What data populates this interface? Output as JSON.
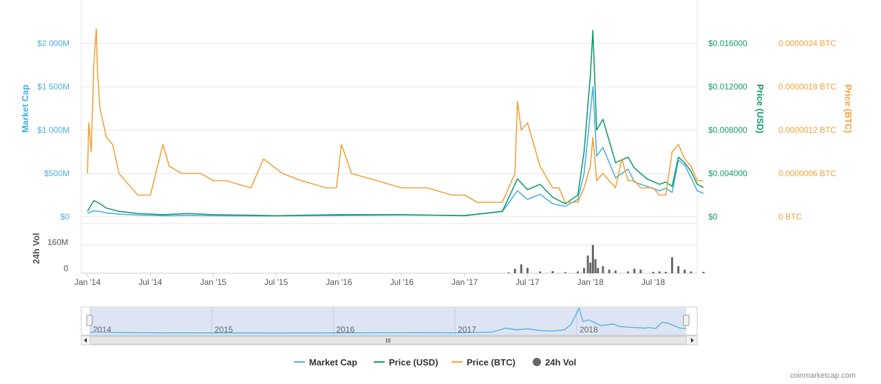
{
  "chart_data": {
    "type": "line",
    "x_ticks": [
      "Jan '14",
      "Jul '14",
      "Jan '15",
      "Jul '15",
      "Jan '16",
      "Jul '16",
      "Jan '17",
      "Jul '17",
      "Jan '18",
      "Jul '18"
    ],
    "axes": {
      "market_cap": {
        "label": "Market Cap",
        "ticks": [
          "$0",
          "$500M",
          "$1 000M",
          "$1 500M",
          "$2 000M"
        ],
        "range": [
          0,
          2000
        ],
        "color": "#4aaee0"
      },
      "price_usd": {
        "label": "Price (USD)",
        "ticks": [
          "$0",
          "$0.004000",
          "$0.008000",
          "$0.012000",
          "$0.016000"
        ],
        "range": [
          0,
          0.016
        ],
        "color": "#119a6f"
      },
      "price_btc": {
        "label": "Price (BTC)",
        "ticks": [
          "0 BTC",
          "0.0000006 BTC",
          "0.0000012 BTC",
          "0.0000018 BTC",
          "0.0000024 BTC"
        ],
        "range": [
          0,
          2.4e-06
        ],
        "color": "#f0a23a"
      },
      "volume": {
        "label": "24h Vol",
        "ticks": [
          "0",
          "160M"
        ],
        "range": [
          0,
          160
        ],
        "color": "#666666"
      }
    },
    "series": [
      {
        "name": "Market Cap",
        "unit": "$M",
        "color": "#4aaee0",
        "x": [
          2014.0,
          2014.05,
          2014.1,
          2014.15,
          2014.25,
          2014.4,
          2014.6,
          2014.8,
          2015.0,
          2015.5,
          2016.0,
          2016.5,
          2017.0,
          2017.3,
          2017.42,
          2017.5,
          2017.6,
          2017.7,
          2017.8,
          2017.9,
          2017.95,
          2018.0,
          2018.02,
          2018.05,
          2018.1,
          2018.2,
          2018.3,
          2018.35,
          2018.45,
          2018.55,
          2018.6,
          2018.65,
          2018.7,
          2018.75,
          2018.8,
          2018.85,
          2018.9
        ],
        "values": [
          40,
          70,
          60,
          45,
          30,
          20,
          12,
          15,
          12,
          10,
          14,
          20,
          15,
          60,
          300,
          200,
          260,
          150,
          120,
          200,
          500,
          1200,
          1500,
          700,
          800,
          450,
          550,
          400,
          350,
          300,
          330,
          280,
          650,
          600,
          450,
          300,
          270
        ]
      },
      {
        "name": "Price (USD)",
        "unit": "USD",
        "color": "#119a6f",
        "x": [
          2014.0,
          2014.05,
          2014.1,
          2014.15,
          2014.25,
          2014.4,
          2014.6,
          2014.8,
          2015.0,
          2015.5,
          2016.0,
          2016.5,
          2017.0,
          2017.3,
          2017.42,
          2017.5,
          2017.6,
          2017.7,
          2017.8,
          2017.9,
          2017.95,
          2018.0,
          2018.02,
          2018.05,
          2018.1,
          2018.2,
          2018.3,
          2018.35,
          2018.45,
          2018.55,
          2018.6,
          2018.65,
          2018.7,
          2018.75,
          2018.8,
          2018.85,
          2018.9
        ],
        "values": [
          0.0005,
          0.0015,
          0.0012,
          0.0008,
          0.0005,
          0.0003,
          0.0002,
          0.0003,
          0.0002,
          0.0001,
          0.0002,
          0.0002,
          0.0001,
          0.0005,
          0.0035,
          0.0025,
          0.003,
          0.0018,
          0.0012,
          0.002,
          0.006,
          0.013,
          0.0172,
          0.008,
          0.009,
          0.005,
          0.0055,
          0.0045,
          0.0035,
          0.003,
          0.0032,
          0.0028,
          0.0055,
          0.005,
          0.0042,
          0.003,
          0.0027
        ]
      },
      {
        "name": "Price (BTC)",
        "unit": "BTC",
        "color": "#f0a23a",
        "x": [
          2014.0,
          2014.01,
          2014.03,
          2014.05,
          2014.07,
          2014.08,
          2014.1,
          2014.15,
          2014.2,
          2014.25,
          2014.3,
          2014.4,
          2014.5,
          2014.6,
          2014.65,
          2014.75,
          2014.9,
          2015.0,
          2015.1,
          2015.3,
          2015.4,
          2015.55,
          2015.7,
          2015.9,
          2015.98,
          2016.02,
          2016.1,
          2016.3,
          2016.5,
          2016.7,
          2016.9,
          2017.0,
          2017.1,
          2017.2,
          2017.3,
          2017.35,
          2017.4,
          2017.42,
          2017.45,
          2017.5,
          2017.6,
          2017.7,
          2017.75,
          2017.8,
          2017.9,
          2017.95,
          2018.0,
          2018.02,
          2018.05,
          2018.1,
          2018.15,
          2018.2,
          2018.25,
          2018.3,
          2018.35,
          2018.4,
          2018.5,
          2018.55,
          2018.6,
          2018.65,
          2018.7,
          2018.75,
          2018.8,
          2018.85,
          2018.9
        ],
        "values": [
          6e-07,
          1.3e-06,
          9e-07,
          2.1e-06,
          2.6e-06,
          2e-06,
          1.5e-06,
          1.1e-06,
          1e-06,
          6e-07,
          5e-07,
          3e-07,
          3e-07,
          1e-06,
          7e-07,
          6e-07,
          6e-07,
          5e-07,
          5e-07,
          4e-07,
          8e-07,
          6e-07,
          5e-07,
          4e-07,
          4e-07,
          1e-06,
          6e-07,
          5e-07,
          4e-07,
          4e-07,
          3e-07,
          3e-07,
          2e-07,
          2e-07,
          2e-07,
          4e-07,
          6e-07,
          1.6e-06,
          1.2e-06,
          1.3e-06,
          7e-07,
          4e-07,
          4e-07,
          2e-07,
          2e-07,
          4e-07,
          7e-07,
          1.1e-06,
          5e-07,
          6e-07,
          5e-07,
          4e-07,
          8e-07,
          5e-07,
          5e-07,
          4e-07,
          4e-07,
          3e-07,
          3e-07,
          9e-07,
          1e-06,
          8e-07,
          7e-07,
          5e-07,
          5e-07
        ]
      },
      {
        "name": "24h Vol",
        "unit": "$M",
        "color": "#666666",
        "x": [
          2017.35,
          2017.4,
          2017.45,
          2017.5,
          2017.6,
          2017.7,
          2017.8,
          2017.9,
          2017.95,
          2017.98,
          2018.0,
          2018.02,
          2018.04,
          2018.06,
          2018.1,
          2018.15,
          2018.2,
          2018.3,
          2018.35,
          2018.4,
          2018.5,
          2018.55,
          2018.6,
          2018.65,
          2018.7,
          2018.75,
          2018.8,
          2018.9
        ],
        "values": [
          5,
          25,
          50,
          30,
          10,
          12,
          6,
          10,
          30,
          100,
          60,
          160,
          80,
          30,
          40,
          20,
          15,
          10,
          25,
          20,
          8,
          10,
          8,
          90,
          40,
          20,
          10,
          8
        ]
      }
    ],
    "navigator": {
      "year_labels": [
        "2014",
        "2015",
        "2016",
        "2017",
        "2018"
      ],
      "scroll_grip": "III"
    },
    "legend": {
      "placement": "bottom",
      "items": [
        {
          "label": "Market Cap",
          "color": "#4aaee0",
          "marker": "line"
        },
        {
          "label": "Price (USD)",
          "color": "#119a6f",
          "marker": "line"
        },
        {
          "label": "Price (BTC)",
          "color": "#f0a23a",
          "marker": "line"
        },
        {
          "label": "24h Vol",
          "color": "#666666",
          "marker": "circle"
        }
      ]
    },
    "grid": true
  },
  "credit": "coinmarketcap.com"
}
